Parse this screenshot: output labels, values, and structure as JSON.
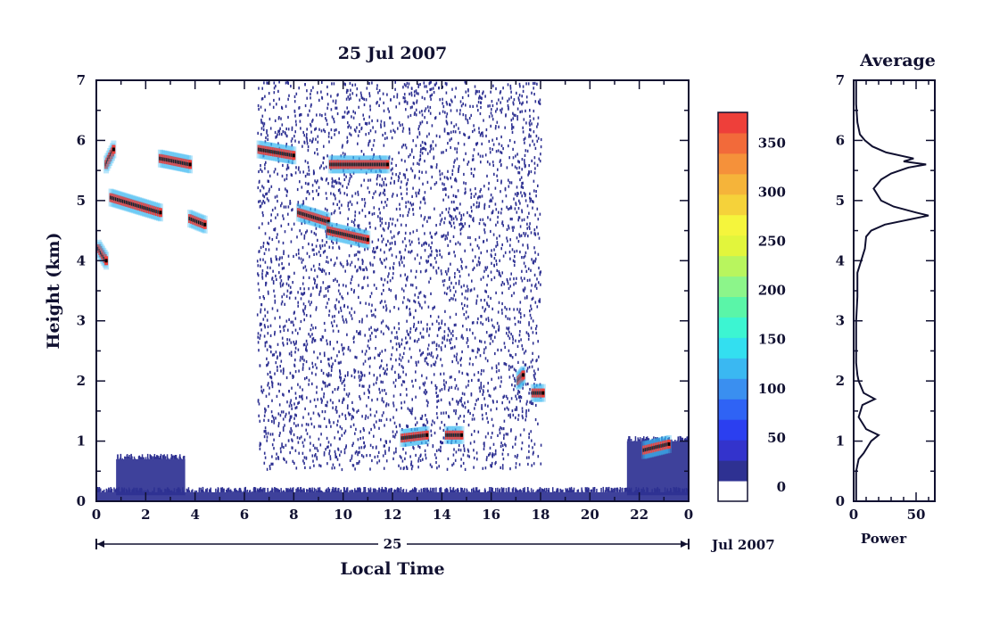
{
  "chart_data": [
    {
      "type": "heatmap",
      "title": "25 Jul 2007",
      "xlabel": "Local Time",
      "ylabel": "Height (km)",
      "xlim": [
        0,
        24
      ],
      "ylim": [
        0,
        7
      ],
      "x_ticks": [
        "0",
        "2",
        "4",
        "6",
        "8",
        "10",
        "12",
        "14",
        "16",
        "18",
        "20",
        "22",
        "0"
      ],
      "y_ticks": [
        "0",
        "1",
        "2",
        "3",
        "4",
        "5",
        "6",
        "7"
      ],
      "date_axis": {
        "day_label": "25",
        "month_year_label": "Jul 2007"
      },
      "colorbar": {
        "ticks": [
          "0",
          "50",
          "100",
          "150",
          "200",
          "250",
          "300",
          "350"
        ],
        "range": [
          0,
          375
        ],
        "colors": [
          "#ffffff",
          "#2e3192",
          "#3333cc",
          "#2b3ff0",
          "#2f63f5",
          "#3a8ff0",
          "#3ab8f2",
          "#33dff0",
          "#3cf5d2",
          "#5af5a8",
          "#8cf58a",
          "#b8f55e",
          "#e2f53c",
          "#f5f53c",
          "#f5d23a",
          "#f5b43a",
          "#f5913a",
          "#f26a3a",
          "#ee3f3a"
        ]
      },
      "layers": [
        {
          "name": "scatter-noise",
          "x_range": [
            6.5,
            18.0
          ],
          "y_range": [
            0.55,
            7.0
          ],
          "value": 20
        },
        {
          "name": "surface-layer",
          "x_range": [
            0.0,
            24.0
          ],
          "y_range": [
            0.0,
            0.15
          ],
          "value": 20
        },
        {
          "name": "lower-layer-left",
          "x_range": [
            0.8,
            3.6
          ],
          "y_range": [
            0.1,
            0.7
          ],
          "value": 20
        },
        {
          "name": "lower-layer-right",
          "x_range": [
            21.5,
            24.0
          ],
          "y_range": [
            0.1,
            1.0
          ],
          "value": 20
        }
      ],
      "echo_segments": [
        {
          "x": [
            0.4,
            0.7
          ],
          "y": [
            5.6,
            5.85
          ],
          "value": 380
        },
        {
          "x": [
            0.6,
            2.6
          ],
          "y": [
            5.05,
            4.8
          ],
          "value": 380
        },
        {
          "x": [
            2.6,
            3.8
          ],
          "y": [
            5.7,
            5.6
          ],
          "value": 380
        },
        {
          "x": [
            3.8,
            4.4
          ],
          "y": [
            4.7,
            4.6
          ],
          "value": 380
        },
        {
          "x": [
            6.6,
            8.0
          ],
          "y": [
            5.85,
            5.75
          ],
          "value": 380
        },
        {
          "x": [
            9.5,
            11.8
          ],
          "y": [
            5.6,
            5.6
          ],
          "value": 380
        },
        {
          "x": [
            8.2,
            9.4
          ],
          "y": [
            4.8,
            4.65
          ],
          "value": 380
        },
        {
          "x": [
            9.4,
            11.0
          ],
          "y": [
            4.5,
            4.35
          ],
          "value": 380
        },
        {
          "x": [
            12.4,
            13.4
          ],
          "y": [
            1.05,
            1.1
          ],
          "value": 380
        },
        {
          "x": [
            14.2,
            14.8
          ],
          "y": [
            1.1,
            1.1
          ],
          "value": 380
        },
        {
          "x": [
            17.1,
            17.3
          ],
          "y": [
            2.0,
            2.1
          ],
          "value": 380
        },
        {
          "x": [
            17.7,
            18.1
          ],
          "y": [
            1.8,
            1.8
          ],
          "value": 380
        },
        {
          "x": [
            22.2,
            23.2
          ],
          "y": [
            0.85,
            0.95
          ],
          "value": 380
        },
        {
          "x": [
            0.1,
            0.4
          ],
          "y": [
            4.2,
            4.0
          ],
          "value": 380
        }
      ]
    },
    {
      "type": "line",
      "title": "Average",
      "xlabel": "Power",
      "ylabel": "",
      "xlim": [
        0,
        65
      ],
      "ylim": [
        0,
        7
      ],
      "x_ticks": [
        "0",
        "50"
      ],
      "y_ticks": [
        "0",
        "1",
        "2",
        "3",
        "4",
        "5",
        "6",
        "7"
      ],
      "series": [
        {
          "height": [
            0,
            0.2,
            0.5,
            0.7,
            0.8,
            1.0,
            1.1,
            1.2,
            1.4,
            1.6,
            1.7,
            1.8,
            1.9,
            2.0,
            2.1,
            2.3,
            2.6,
            3.0,
            3.4,
            3.8,
            4.0,
            4.2,
            4.4,
            4.5,
            4.6,
            4.7,
            4.75,
            4.8,
            4.9,
            5.0,
            5.2,
            5.35,
            5.45,
            5.55,
            5.6,
            5.65,
            5.7,
            5.8,
            5.9,
            6.0,
            6.1,
            6.3,
            6.6,
            7.0
          ],
          "power": [
            2,
            2,
            2,
            4,
            8,
            14,
            20,
            10,
            4,
            7,
            17,
            8,
            6,
            4,
            3,
            2,
            2,
            2,
            3,
            3,
            6,
            9,
            10,
            14,
            25,
            48,
            60,
            50,
            32,
            22,
            16,
            22,
            30,
            44,
            58,
            40,
            48,
            26,
            15,
            9,
            5,
            3,
            2,
            2
          ]
        }
      ]
    }
  ]
}
